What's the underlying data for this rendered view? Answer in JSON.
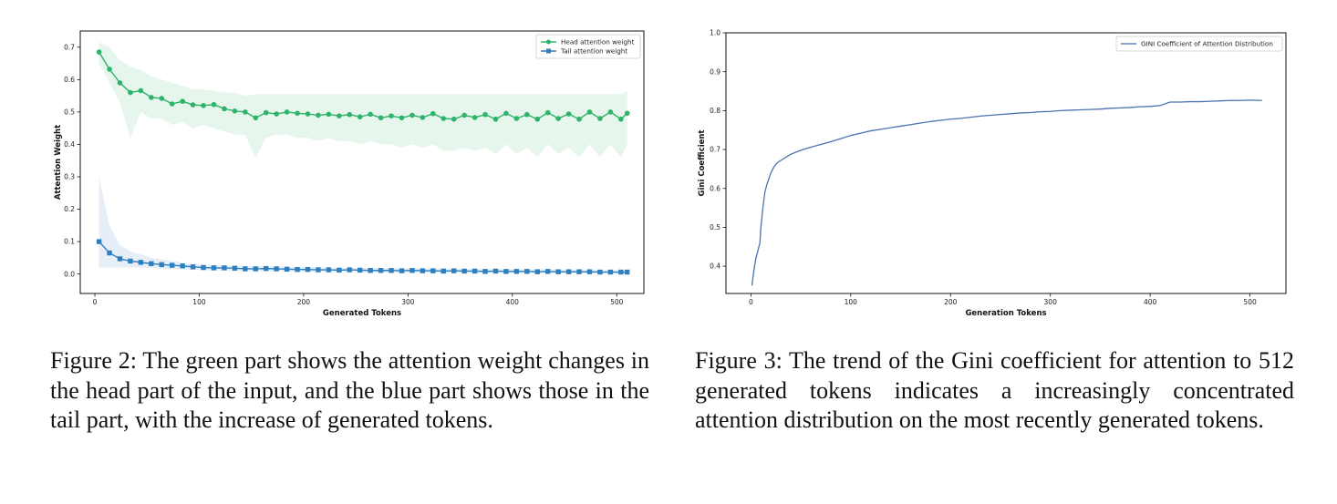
{
  "figures": [
    {
      "caption": "Figure 2: The green part shows the attention weight changes in the head part of the input, and the blue part shows those in the tail part, with the increase of generated tokens."
    },
    {
      "caption": "Figure 3: The trend of the Gini coefficient for attention to 512 generated tokens indicates a increasingly concentrated attention distribution on the most recently generated tokens."
    }
  ],
  "chart_data": [
    {
      "type": "line",
      "title": "",
      "xlabel": "Generated Tokens",
      "ylabel": "Attention Weight",
      "xlim": [
        -14,
        526
      ],
      "ylim": [
        -0.06,
        0.75
      ],
      "xticks": [
        0,
        100,
        200,
        300,
        400,
        500
      ],
      "yticks": [
        0.0,
        0.1,
        0.2,
        0.3,
        0.4,
        0.5,
        0.6,
        0.7
      ],
      "grid": false,
      "legend_position": "top-right",
      "series": [
        {
          "name": "Head attention weight",
          "color": "#2fb36a",
          "band_color": "#2fb36a",
          "marker": "circle",
          "x": [
            4,
            14,
            24,
            34,
            44,
            54,
            64,
            74,
            84,
            94,
            104,
            114,
            124,
            134,
            144,
            154,
            164,
            174,
            184,
            194,
            204,
            214,
            224,
            234,
            244,
            254,
            264,
            274,
            284,
            294,
            304,
            314,
            324,
            334,
            344,
            354,
            364,
            374,
            384,
            394,
            404,
            414,
            424,
            434,
            444,
            454,
            464,
            474,
            484,
            494,
            504,
            510
          ],
          "values": [
            0.685,
            0.632,
            0.59,
            0.56,
            0.566,
            0.545,
            0.542,
            0.525,
            0.533,
            0.522,
            0.52,
            0.523,
            0.51,
            0.503,
            0.5,
            0.482,
            0.498,
            0.494,
            0.5,
            0.496,
            0.494,
            0.49,
            0.493,
            0.488,
            0.492,
            0.485,
            0.493,
            0.482,
            0.488,
            0.482,
            0.49,
            0.483,
            0.495,
            0.48,
            0.478,
            0.49,
            0.483,
            0.492,
            0.478,
            0.496,
            0.48,
            0.492,
            0.478,
            0.498,
            0.48,
            0.494,
            0.478,
            0.5,
            0.48,
            0.5,
            0.478,
            0.496
          ],
          "band_upper": [
            0.715,
            0.7,
            0.66,
            0.64,
            0.63,
            0.61,
            0.6,
            0.59,
            0.58,
            0.57,
            0.57,
            0.565,
            0.56,
            0.56,
            0.55,
            0.555,
            0.555,
            0.555,
            0.555,
            0.555,
            0.555,
            0.555,
            0.555,
            0.555,
            0.555,
            0.555,
            0.555,
            0.555,
            0.555,
            0.555,
            0.555,
            0.555,
            0.555,
            0.555,
            0.555,
            0.555,
            0.555,
            0.555,
            0.555,
            0.555,
            0.555,
            0.555,
            0.555,
            0.555,
            0.555,
            0.555,
            0.555,
            0.555,
            0.555,
            0.555,
            0.555,
            0.565
          ],
          "band_lower": [
            0.65,
            0.59,
            0.53,
            0.42,
            0.5,
            0.48,
            0.48,
            0.46,
            0.47,
            0.45,
            0.46,
            0.45,
            0.44,
            0.43,
            0.43,
            0.36,
            0.42,
            0.43,
            0.43,
            0.42,
            0.42,
            0.41,
            0.42,
            0.41,
            0.41,
            0.4,
            0.41,
            0.4,
            0.4,
            0.39,
            0.4,
            0.39,
            0.4,
            0.38,
            0.38,
            0.39,
            0.38,
            0.39,
            0.37,
            0.4,
            0.37,
            0.39,
            0.36,
            0.4,
            0.37,
            0.39,
            0.36,
            0.4,
            0.36,
            0.4,
            0.36,
            0.4
          ]
        },
        {
          "name": "Tail attention weight",
          "color": "#2e7fbf",
          "band_color": "#2e7fbf",
          "marker": "square",
          "x": [
            4,
            14,
            24,
            34,
            44,
            54,
            64,
            74,
            84,
            94,
            104,
            114,
            124,
            134,
            144,
            154,
            164,
            174,
            184,
            194,
            204,
            214,
            224,
            234,
            244,
            254,
            264,
            274,
            284,
            294,
            304,
            314,
            324,
            334,
            344,
            354,
            364,
            374,
            384,
            394,
            404,
            414,
            424,
            434,
            444,
            454,
            464,
            474,
            484,
            494,
            504,
            510
          ],
          "values": [
            0.1,
            0.065,
            0.047,
            0.04,
            0.036,
            0.032,
            0.029,
            0.027,
            0.025,
            0.022,
            0.02,
            0.019,
            0.019,
            0.018,
            0.016,
            0.016,
            0.017,
            0.016,
            0.015,
            0.014,
            0.014,
            0.013,
            0.013,
            0.012,
            0.013,
            0.012,
            0.011,
            0.011,
            0.011,
            0.01,
            0.011,
            0.01,
            0.01,
            0.009,
            0.01,
            0.009,
            0.009,
            0.008,
            0.009,
            0.008,
            0.008,
            0.008,
            0.007,
            0.008,
            0.007,
            0.007,
            0.007,
            0.007,
            0.006,
            0.006,
            0.006,
            0.006
          ],
          "band_upper": [
            0.3,
            0.15,
            0.09,
            0.07,
            0.06,
            0.05,
            0.045,
            0.04,
            0.035,
            0.032,
            0.03,
            0.028,
            0.027,
            0.026,
            0.025,
            0.025,
            0.024,
            0.024,
            0.023,
            0.022,
            0.022,
            0.021,
            0.021,
            0.02,
            0.02,
            0.02,
            0.019,
            0.019,
            0.019,
            0.018,
            0.018,
            0.018,
            0.017,
            0.017,
            0.017,
            0.016,
            0.016,
            0.016,
            0.016,
            0.015,
            0.015,
            0.015,
            0.015,
            0.015,
            0.014,
            0.014,
            0.014,
            0.014,
            0.013,
            0.013,
            0.013,
            0.013
          ],
          "band_lower": [
            0.02,
            0.02,
            0.02,
            0.02,
            0.02,
            0.018,
            0.016,
            0.015,
            0.014,
            0.013,
            0.012,
            0.011,
            0.011,
            0.01,
            0.009,
            0.009,
            0.009,
            0.008,
            0.008,
            0.007,
            0.007,
            0.006,
            0.006,
            0.006,
            0.006,
            0.005,
            0.005,
            0.005,
            0.005,
            0.004,
            0.004,
            0.004,
            0.004,
            0.003,
            0.004,
            0.003,
            0.003,
            0.003,
            0.003,
            0.003,
            0.003,
            0.003,
            0.002,
            0.002,
            0.002,
            0.002,
            0.002,
            0.002,
            0.002,
            0.002,
            0.002,
            0.002
          ]
        }
      ]
    },
    {
      "type": "line",
      "title": "",
      "xlabel": "Generation Tokens",
      "ylabel": "Gini Coefficient",
      "xlim": [
        -25,
        536
      ],
      "ylim": [
        0.33,
        1.0
      ],
      "xticks": [
        0,
        100,
        200,
        300,
        400,
        500
      ],
      "yticks": [
        0.4,
        0.5,
        0.6,
        0.7,
        0.8,
        0.9,
        1.0
      ],
      "grid": false,
      "legend_position": "top-right",
      "series": [
        {
          "name": "GINI Coefficient of Attention Distribution",
          "color": "#4c72b0",
          "x": [
            1,
            3,
            5,
            7,
            9,
            10,
            12,
            14,
            16,
            18,
            20,
            23,
            26,
            30,
            35,
            40,
            50,
            60,
            70,
            80,
            90,
            100,
            110,
            120,
            130,
            140,
            150,
            160,
            170,
            180,
            190,
            200,
            210,
            220,
            230,
            240,
            250,
            260,
            270,
            280,
            290,
            300,
            310,
            320,
            330,
            340,
            350,
            360,
            370,
            380,
            390,
            400,
            410,
            420,
            430,
            440,
            450,
            460,
            470,
            480,
            490,
            500,
            512
          ],
          "values": [
            0.35,
            0.39,
            0.42,
            0.44,
            0.46,
            0.5,
            0.55,
            0.59,
            0.61,
            0.625,
            0.64,
            0.655,
            0.665,
            0.672,
            0.68,
            0.688,
            0.698,
            0.706,
            0.713,
            0.72,
            0.728,
            0.736,
            0.742,
            0.748,
            0.752,
            0.756,
            0.76,
            0.764,
            0.768,
            0.772,
            0.775,
            0.778,
            0.78,
            0.783,
            0.786,
            0.788,
            0.79,
            0.792,
            0.794,
            0.795,
            0.797,
            0.798,
            0.8,
            0.801,
            0.802,
            0.803,
            0.804,
            0.806,
            0.807,
            0.808,
            0.81,
            0.811,
            0.813,
            0.822,
            0.822,
            0.823,
            0.823,
            0.824,
            0.825,
            0.826,
            0.826,
            0.827,
            0.826
          ]
        }
      ]
    }
  ]
}
